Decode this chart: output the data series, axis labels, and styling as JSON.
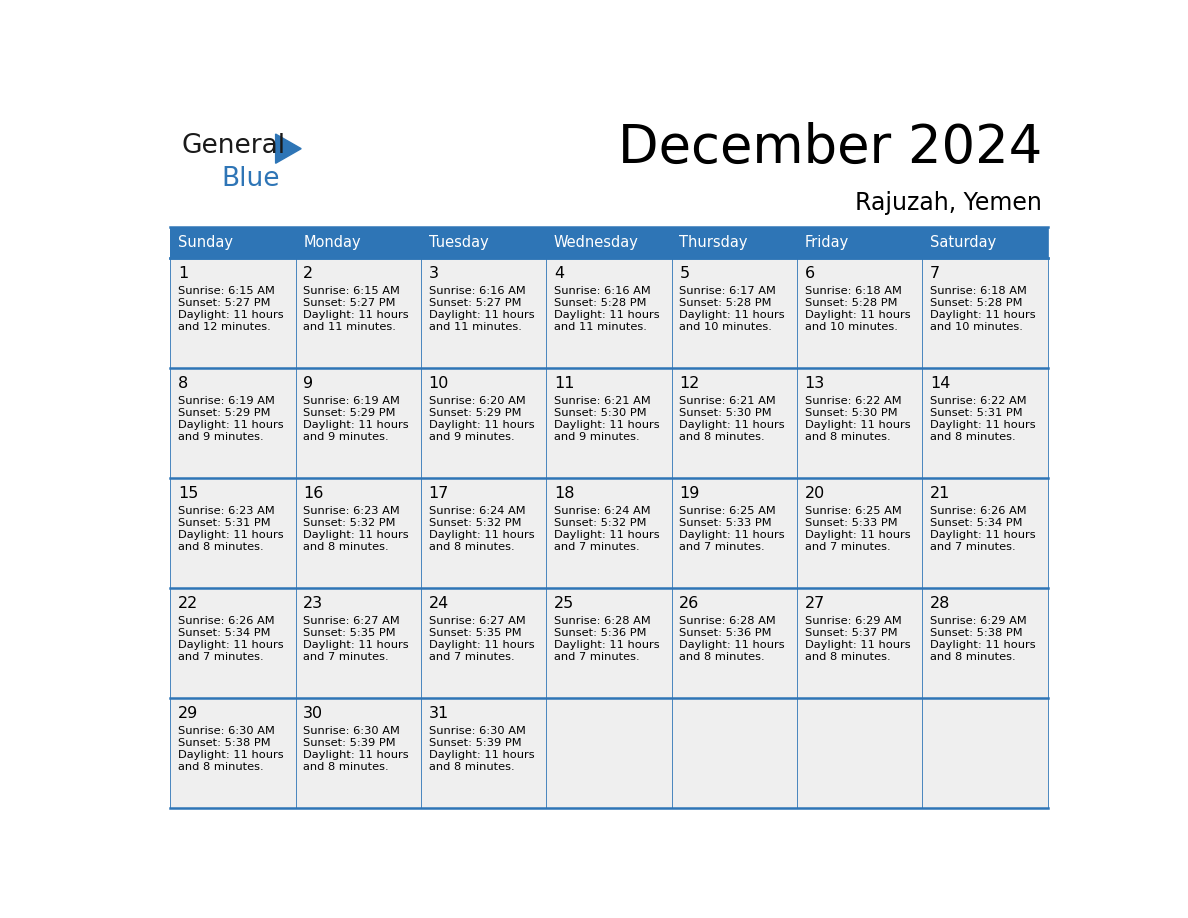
{
  "title": "December 2024",
  "subtitle": "Rajuzah, Yemen",
  "days_of_week": [
    "Sunday",
    "Monday",
    "Tuesday",
    "Wednesday",
    "Thursday",
    "Friday",
    "Saturday"
  ],
  "header_bg": "#2E75B6",
  "header_text_color": "#FFFFFF",
  "cell_bg": "#EFEFEF",
  "border_color": "#2E75B6",
  "text_color": "#000000",
  "logo_black": "#1a1a1a",
  "logo_blue": "#2E75B6",
  "calendar_data": [
    [
      {
        "day": 1,
        "sunrise": "6:15 AM",
        "sunset": "5:27 PM",
        "daylight_hours": 11,
        "daylight_minutes": 12
      },
      {
        "day": 2,
        "sunrise": "6:15 AM",
        "sunset": "5:27 PM",
        "daylight_hours": 11,
        "daylight_minutes": 11
      },
      {
        "day": 3,
        "sunrise": "6:16 AM",
        "sunset": "5:27 PM",
        "daylight_hours": 11,
        "daylight_minutes": 11
      },
      {
        "day": 4,
        "sunrise": "6:16 AM",
        "sunset": "5:28 PM",
        "daylight_hours": 11,
        "daylight_minutes": 11
      },
      {
        "day": 5,
        "sunrise": "6:17 AM",
        "sunset": "5:28 PM",
        "daylight_hours": 11,
        "daylight_minutes": 10
      },
      {
        "day": 6,
        "sunrise": "6:18 AM",
        "sunset": "5:28 PM",
        "daylight_hours": 11,
        "daylight_minutes": 10
      },
      {
        "day": 7,
        "sunrise": "6:18 AM",
        "sunset": "5:28 PM",
        "daylight_hours": 11,
        "daylight_minutes": 10
      }
    ],
    [
      {
        "day": 8,
        "sunrise": "6:19 AM",
        "sunset": "5:29 PM",
        "daylight_hours": 11,
        "daylight_minutes": 9
      },
      {
        "day": 9,
        "sunrise": "6:19 AM",
        "sunset": "5:29 PM",
        "daylight_hours": 11,
        "daylight_minutes": 9
      },
      {
        "day": 10,
        "sunrise": "6:20 AM",
        "sunset": "5:29 PM",
        "daylight_hours": 11,
        "daylight_minutes": 9
      },
      {
        "day": 11,
        "sunrise": "6:21 AM",
        "sunset": "5:30 PM",
        "daylight_hours": 11,
        "daylight_minutes": 9
      },
      {
        "day": 12,
        "sunrise": "6:21 AM",
        "sunset": "5:30 PM",
        "daylight_hours": 11,
        "daylight_minutes": 8
      },
      {
        "day": 13,
        "sunrise": "6:22 AM",
        "sunset": "5:30 PM",
        "daylight_hours": 11,
        "daylight_minutes": 8
      },
      {
        "day": 14,
        "sunrise": "6:22 AM",
        "sunset": "5:31 PM",
        "daylight_hours": 11,
        "daylight_minutes": 8
      }
    ],
    [
      {
        "day": 15,
        "sunrise": "6:23 AM",
        "sunset": "5:31 PM",
        "daylight_hours": 11,
        "daylight_minutes": 8
      },
      {
        "day": 16,
        "sunrise": "6:23 AM",
        "sunset": "5:32 PM",
        "daylight_hours": 11,
        "daylight_minutes": 8
      },
      {
        "day": 17,
        "sunrise": "6:24 AM",
        "sunset": "5:32 PM",
        "daylight_hours": 11,
        "daylight_minutes": 8
      },
      {
        "day": 18,
        "sunrise": "6:24 AM",
        "sunset": "5:32 PM",
        "daylight_hours": 11,
        "daylight_minutes": 7
      },
      {
        "day": 19,
        "sunrise": "6:25 AM",
        "sunset": "5:33 PM",
        "daylight_hours": 11,
        "daylight_minutes": 7
      },
      {
        "day": 20,
        "sunrise": "6:25 AM",
        "sunset": "5:33 PM",
        "daylight_hours": 11,
        "daylight_minutes": 7
      },
      {
        "day": 21,
        "sunrise": "6:26 AM",
        "sunset": "5:34 PM",
        "daylight_hours": 11,
        "daylight_minutes": 7
      }
    ],
    [
      {
        "day": 22,
        "sunrise": "6:26 AM",
        "sunset": "5:34 PM",
        "daylight_hours": 11,
        "daylight_minutes": 7
      },
      {
        "day": 23,
        "sunrise": "6:27 AM",
        "sunset": "5:35 PM",
        "daylight_hours": 11,
        "daylight_minutes": 7
      },
      {
        "day": 24,
        "sunrise": "6:27 AM",
        "sunset": "5:35 PM",
        "daylight_hours": 11,
        "daylight_minutes": 7
      },
      {
        "day": 25,
        "sunrise": "6:28 AM",
        "sunset": "5:36 PM",
        "daylight_hours": 11,
        "daylight_minutes": 7
      },
      {
        "day": 26,
        "sunrise": "6:28 AM",
        "sunset": "5:36 PM",
        "daylight_hours": 11,
        "daylight_minutes": 8
      },
      {
        "day": 27,
        "sunrise": "6:29 AM",
        "sunset": "5:37 PM",
        "daylight_hours": 11,
        "daylight_minutes": 8
      },
      {
        "day": 28,
        "sunrise": "6:29 AM",
        "sunset": "5:38 PM",
        "daylight_hours": 11,
        "daylight_minutes": 8
      }
    ],
    [
      {
        "day": 29,
        "sunrise": "6:30 AM",
        "sunset": "5:38 PM",
        "daylight_hours": 11,
        "daylight_minutes": 8
      },
      {
        "day": 30,
        "sunrise": "6:30 AM",
        "sunset": "5:39 PM",
        "daylight_hours": 11,
        "daylight_minutes": 8
      },
      {
        "day": 31,
        "sunrise": "6:30 AM",
        "sunset": "5:39 PM",
        "daylight_hours": 11,
        "daylight_minutes": 8
      },
      null,
      null,
      null,
      null
    ]
  ]
}
